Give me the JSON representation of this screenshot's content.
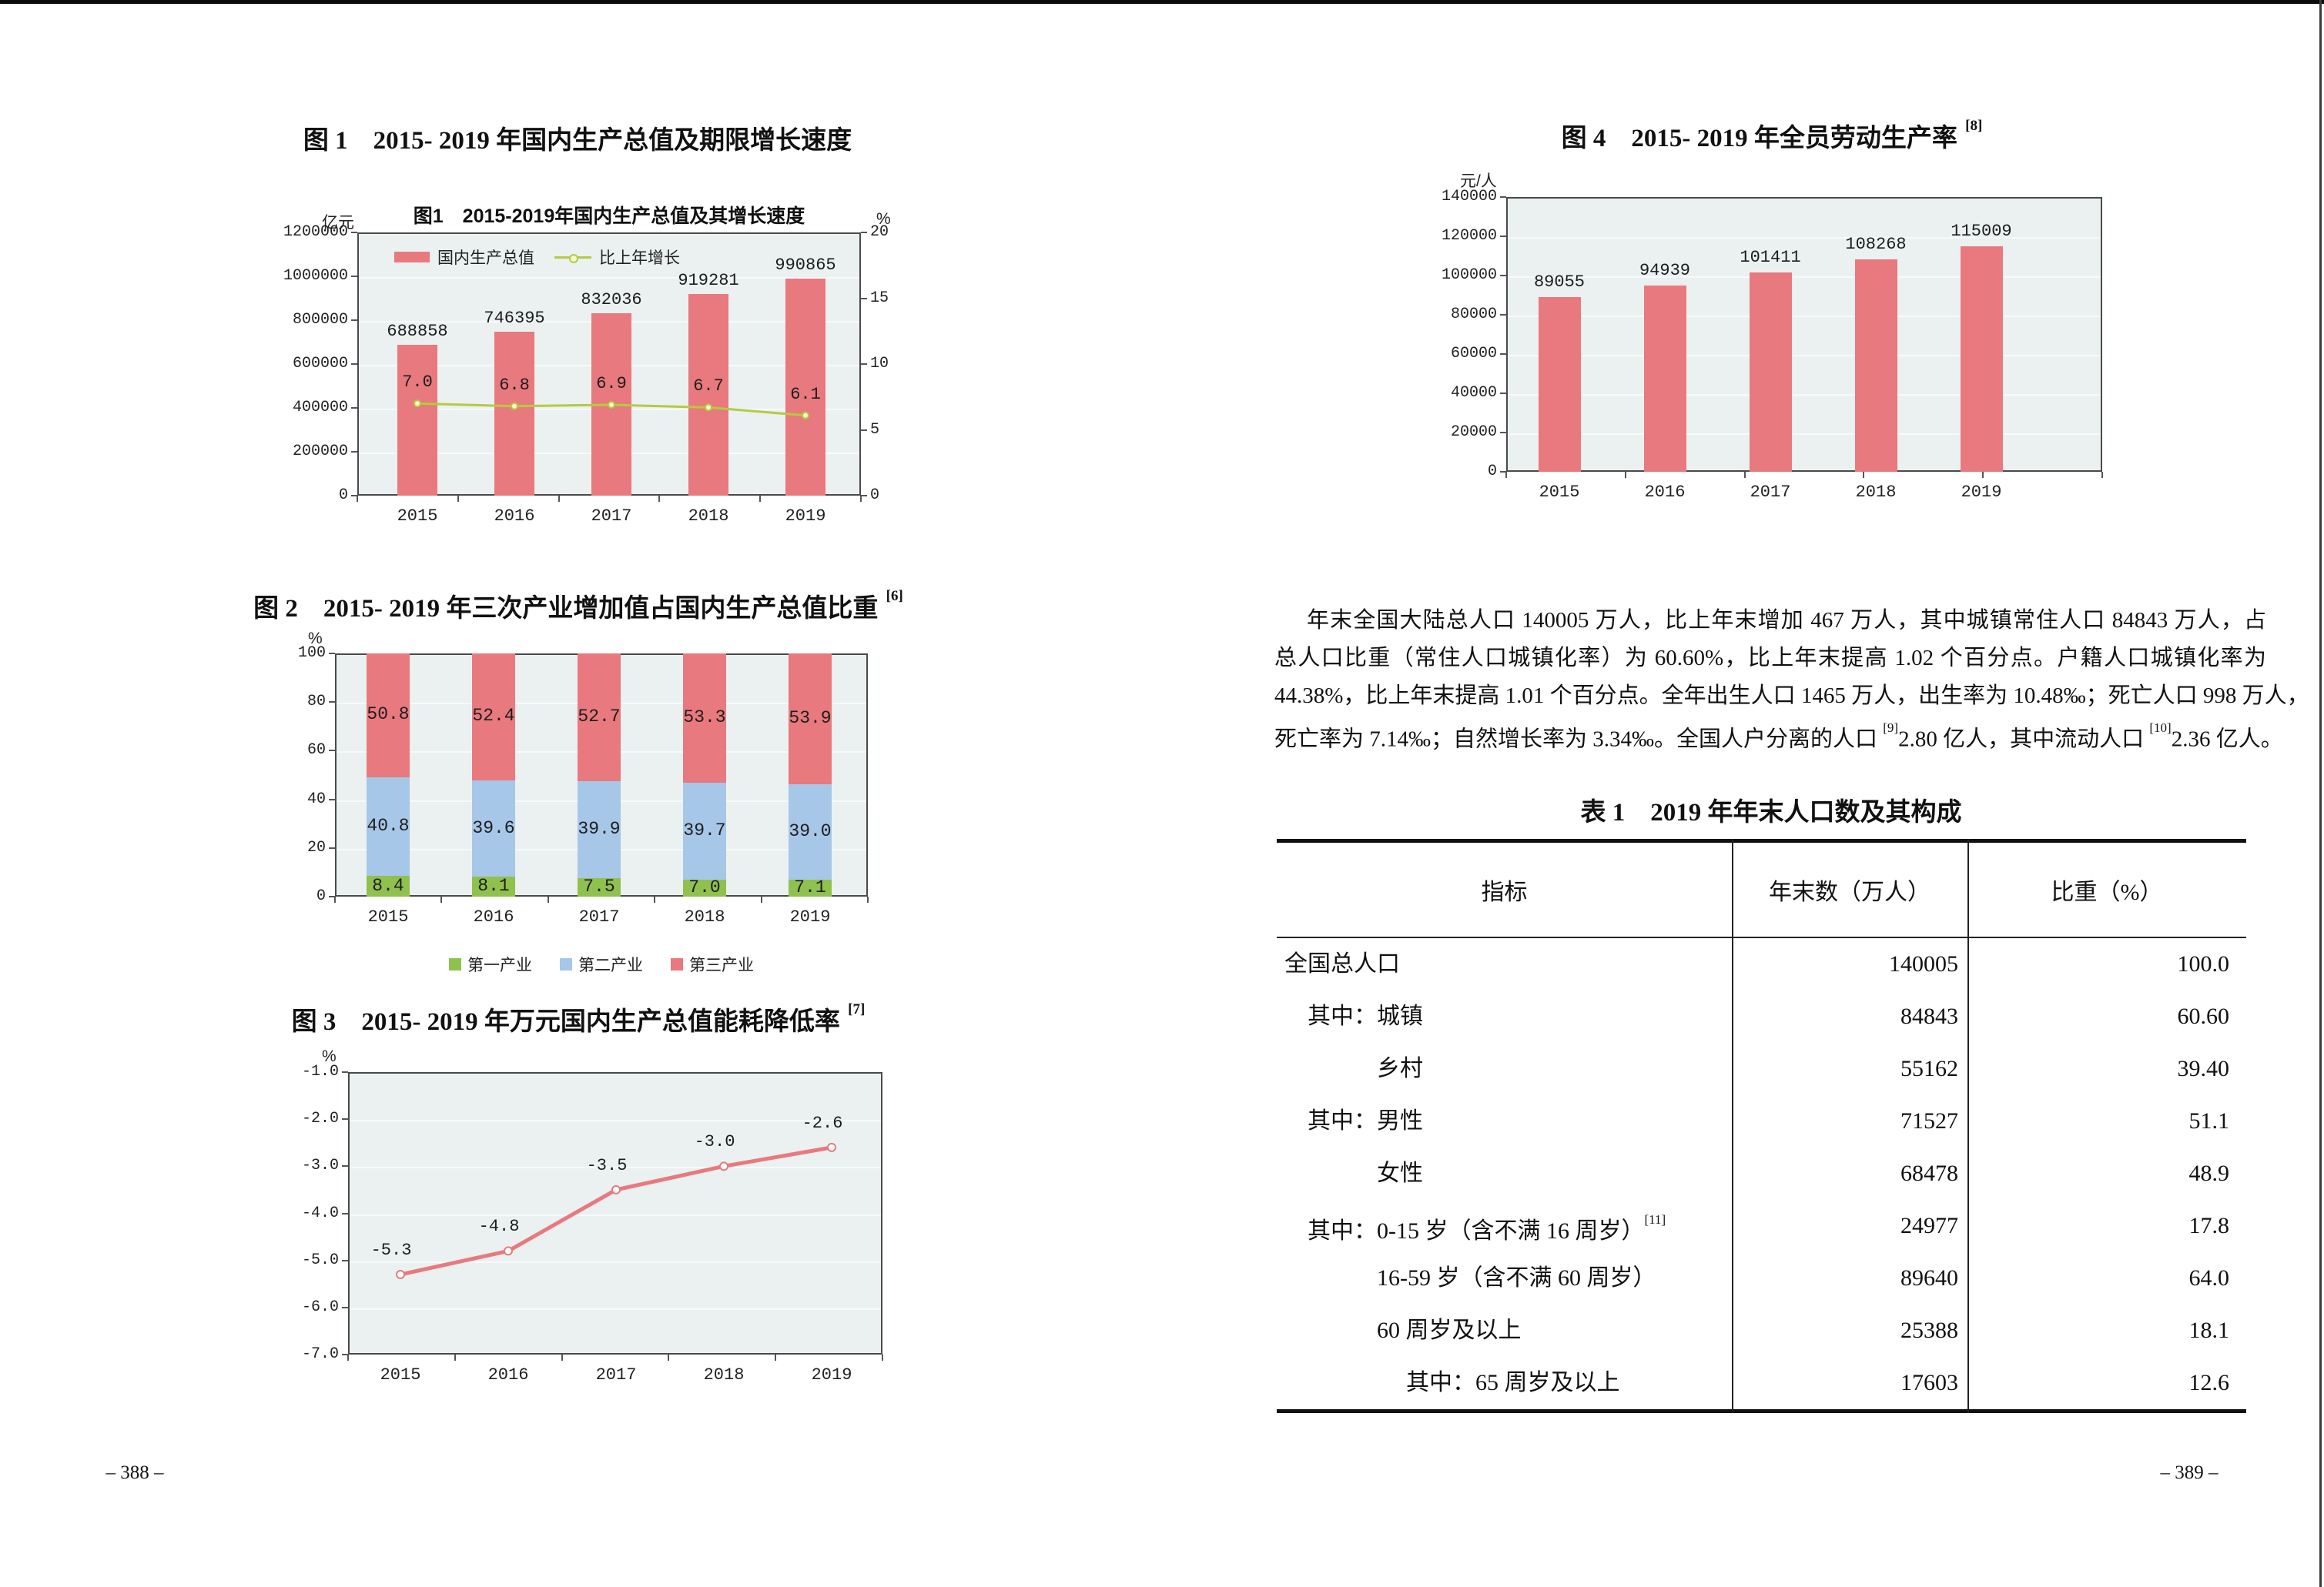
{
  "page": {
    "left_page_number": "– 388 –",
    "right_page_number": "– 389 –"
  },
  "chart_data": [
    {
      "id": "fig1",
      "type": "bar",
      "title": "图 1　2015- 2019 年国内生产总值及期限增长速度",
      "inner_title": "图1　2015-2019年国内生产总值及其增长速度",
      "unit_left": "亿元",
      "unit_right": "%",
      "categories": [
        "2015",
        "2016",
        "2017",
        "2018",
        "2019"
      ],
      "series": [
        {
          "name": "国内生产总值",
          "type": "bar",
          "unit": "亿元",
          "color": "#E8797E",
          "values": [
            688858,
            746395,
            832036,
            919281,
            990865
          ],
          "labels": [
            "688858",
            "746395",
            "832036",
            "919281",
            "990865"
          ]
        },
        {
          "name": "比上年增长",
          "type": "line",
          "unit": "%",
          "color": "#B6CA3F",
          "values": [
            7.0,
            6.8,
            6.9,
            6.7,
            6.1
          ],
          "labels": [
            "7.0",
            "6.8",
            "6.9",
            "6.7",
            "6.1"
          ]
        }
      ],
      "left_axis": {
        "min": 0,
        "max": 1200000,
        "ticks": [
          "1200000",
          "1000000",
          "800000",
          "600000",
          "400000",
          "200000",
          "0"
        ]
      },
      "right_axis": {
        "min": 0,
        "max": 20,
        "ticks": [
          "20",
          "15",
          "10",
          "5",
          "0"
        ]
      },
      "legend_position": "top-left-inside",
      "grid": true
    },
    {
      "id": "fig2",
      "type": "bar",
      "title": "图 2　2015- 2019 年三次产业增加值占国内生产总值比重 ",
      "title_sup": "[6]",
      "axis_label": "%",
      "stacked": true,
      "categories": [
        "2015",
        "2016",
        "2017",
        "2018",
        "2019"
      ],
      "series": [
        {
          "name": "第一产业",
          "color": "#90C04E",
          "values": [
            8.4,
            8.1,
            7.5,
            7.0,
            7.1
          ],
          "labels": [
            "8.4",
            "8.1",
            "7.5",
            "7.0",
            "7.1"
          ]
        },
        {
          "name": "第二产业",
          "color": "#A6C7E7",
          "values": [
            40.8,
            39.6,
            39.9,
            39.7,
            39.0
          ],
          "labels": [
            "40.8",
            "39.6",
            "39.9",
            "39.7",
            "39.0"
          ]
        },
        {
          "name": "第三产业",
          "color": "#E8797E",
          "values": [
            50.8,
            52.4,
            52.7,
            53.3,
            53.9
          ],
          "labels": [
            "50.8",
            "52.4",
            "52.7",
            "53.3",
            "53.9"
          ]
        }
      ],
      "y_axis": {
        "min": 0,
        "max": 100,
        "ticks": [
          "100",
          "80",
          "60",
          "40",
          "20",
          "0"
        ]
      },
      "legend_position": "bottom",
      "grid": true
    },
    {
      "id": "fig3",
      "type": "line",
      "title": "图 3　2015- 2019 年万元国内生产总值能耗降低率 ",
      "title_sup": "[7]",
      "axis_label": "%",
      "categories": [
        "2015",
        "2016",
        "2017",
        "2018",
        "2019"
      ],
      "values": [
        -5.3,
        -4.8,
        -3.5,
        -3.0,
        -2.6
      ],
      "labels": [
        "-5.3",
        "-4.8",
        "-3.5",
        "-3.0",
        "-2.6"
      ],
      "color": "#E8797E",
      "y_axis": {
        "min": -7.0,
        "max": -1.0,
        "ticks": [
          "-1.0",
          "-2.0",
          "-3.0",
          "-4.0",
          "-5.0",
          "-6.0",
          "-7.0"
        ]
      },
      "grid": true
    },
    {
      "id": "fig4",
      "type": "bar",
      "title": "图 4　2015- 2019 年全员劳动生产率 ",
      "title_sup": "[8]",
      "axis_label": "元/人",
      "categories": [
        "2015",
        "2016",
        "2017",
        "2018",
        "2019"
      ],
      "values": [
        89055,
        94939,
        101411,
        108268,
        115009
      ],
      "labels": [
        "89055",
        "94939",
        "101411",
        "108268",
        "115009"
      ],
      "color": "#E8797E",
      "y_axis": {
        "min": 0,
        "max": 140000,
        "ticks": [
          "140000",
          "120000",
          "100000",
          "80000",
          "60000",
          "40000",
          "20000",
          "0"
        ]
      },
      "grid": true
    }
  ],
  "paragraph": {
    "lines": [
      "年末全国大陆总人口 140005 万人，比上年末增加 467 万人，其中城镇常住人口 84843 万人，占",
      "总人口比重（常住人口城镇化率）为 60.60%，比上年末提高 1.02 个百分点。户籍人口城镇化率为",
      "44.38%，比上年末提高 1.01 个百分点。全年出生人口 1465 万人，出生率为 10.48‰；死亡人口 998 万人，"
    ],
    "line4": {
      "a": "死亡率为 7.14‰；自然增长率为 3.34‰。全国人户分离的人口 ",
      "s1": "[9]",
      "b": "2.80 亿人，其中流动人口 ",
      "s2": "[10]",
      "c": "2.36 亿人。"
    }
  },
  "table": {
    "title": "表 1　2019 年年末人口数及其构成",
    "headers": [
      "指标",
      "年末数（万人）",
      "比重（%）"
    ],
    "rows": [
      {
        "label": "全国总人口",
        "indent": 0,
        "value": "140005",
        "pct": "100.0"
      },
      {
        "label": "其中：城镇",
        "indent": 1,
        "value": "84843",
        "pct": "60.60"
      },
      {
        "label": "乡村",
        "indent": 2,
        "value": "55162",
        "pct": "39.40"
      },
      {
        "label": "其中：男性",
        "indent": 1,
        "value": "71527",
        "pct": "51.1"
      },
      {
        "label": "女性",
        "indent": 2,
        "value": "68478",
        "pct": "48.9"
      },
      {
        "label": "其中：0-15 岁（含不满 16 周岁）",
        "sup": "[11]",
        "indent": 1,
        "value": "24977",
        "pct": "17.8"
      },
      {
        "label": "16-59 岁（含不满 60 周岁）",
        "indent": 2,
        "value": "89640",
        "pct": "64.0"
      },
      {
        "label": "60 周岁及以上",
        "indent": 2,
        "value": "25388",
        "pct": "18.1"
      },
      {
        "label": "其中：65 周岁及以上",
        "indent": 3,
        "value": "17603",
        "pct": "12.6"
      }
    ]
  }
}
